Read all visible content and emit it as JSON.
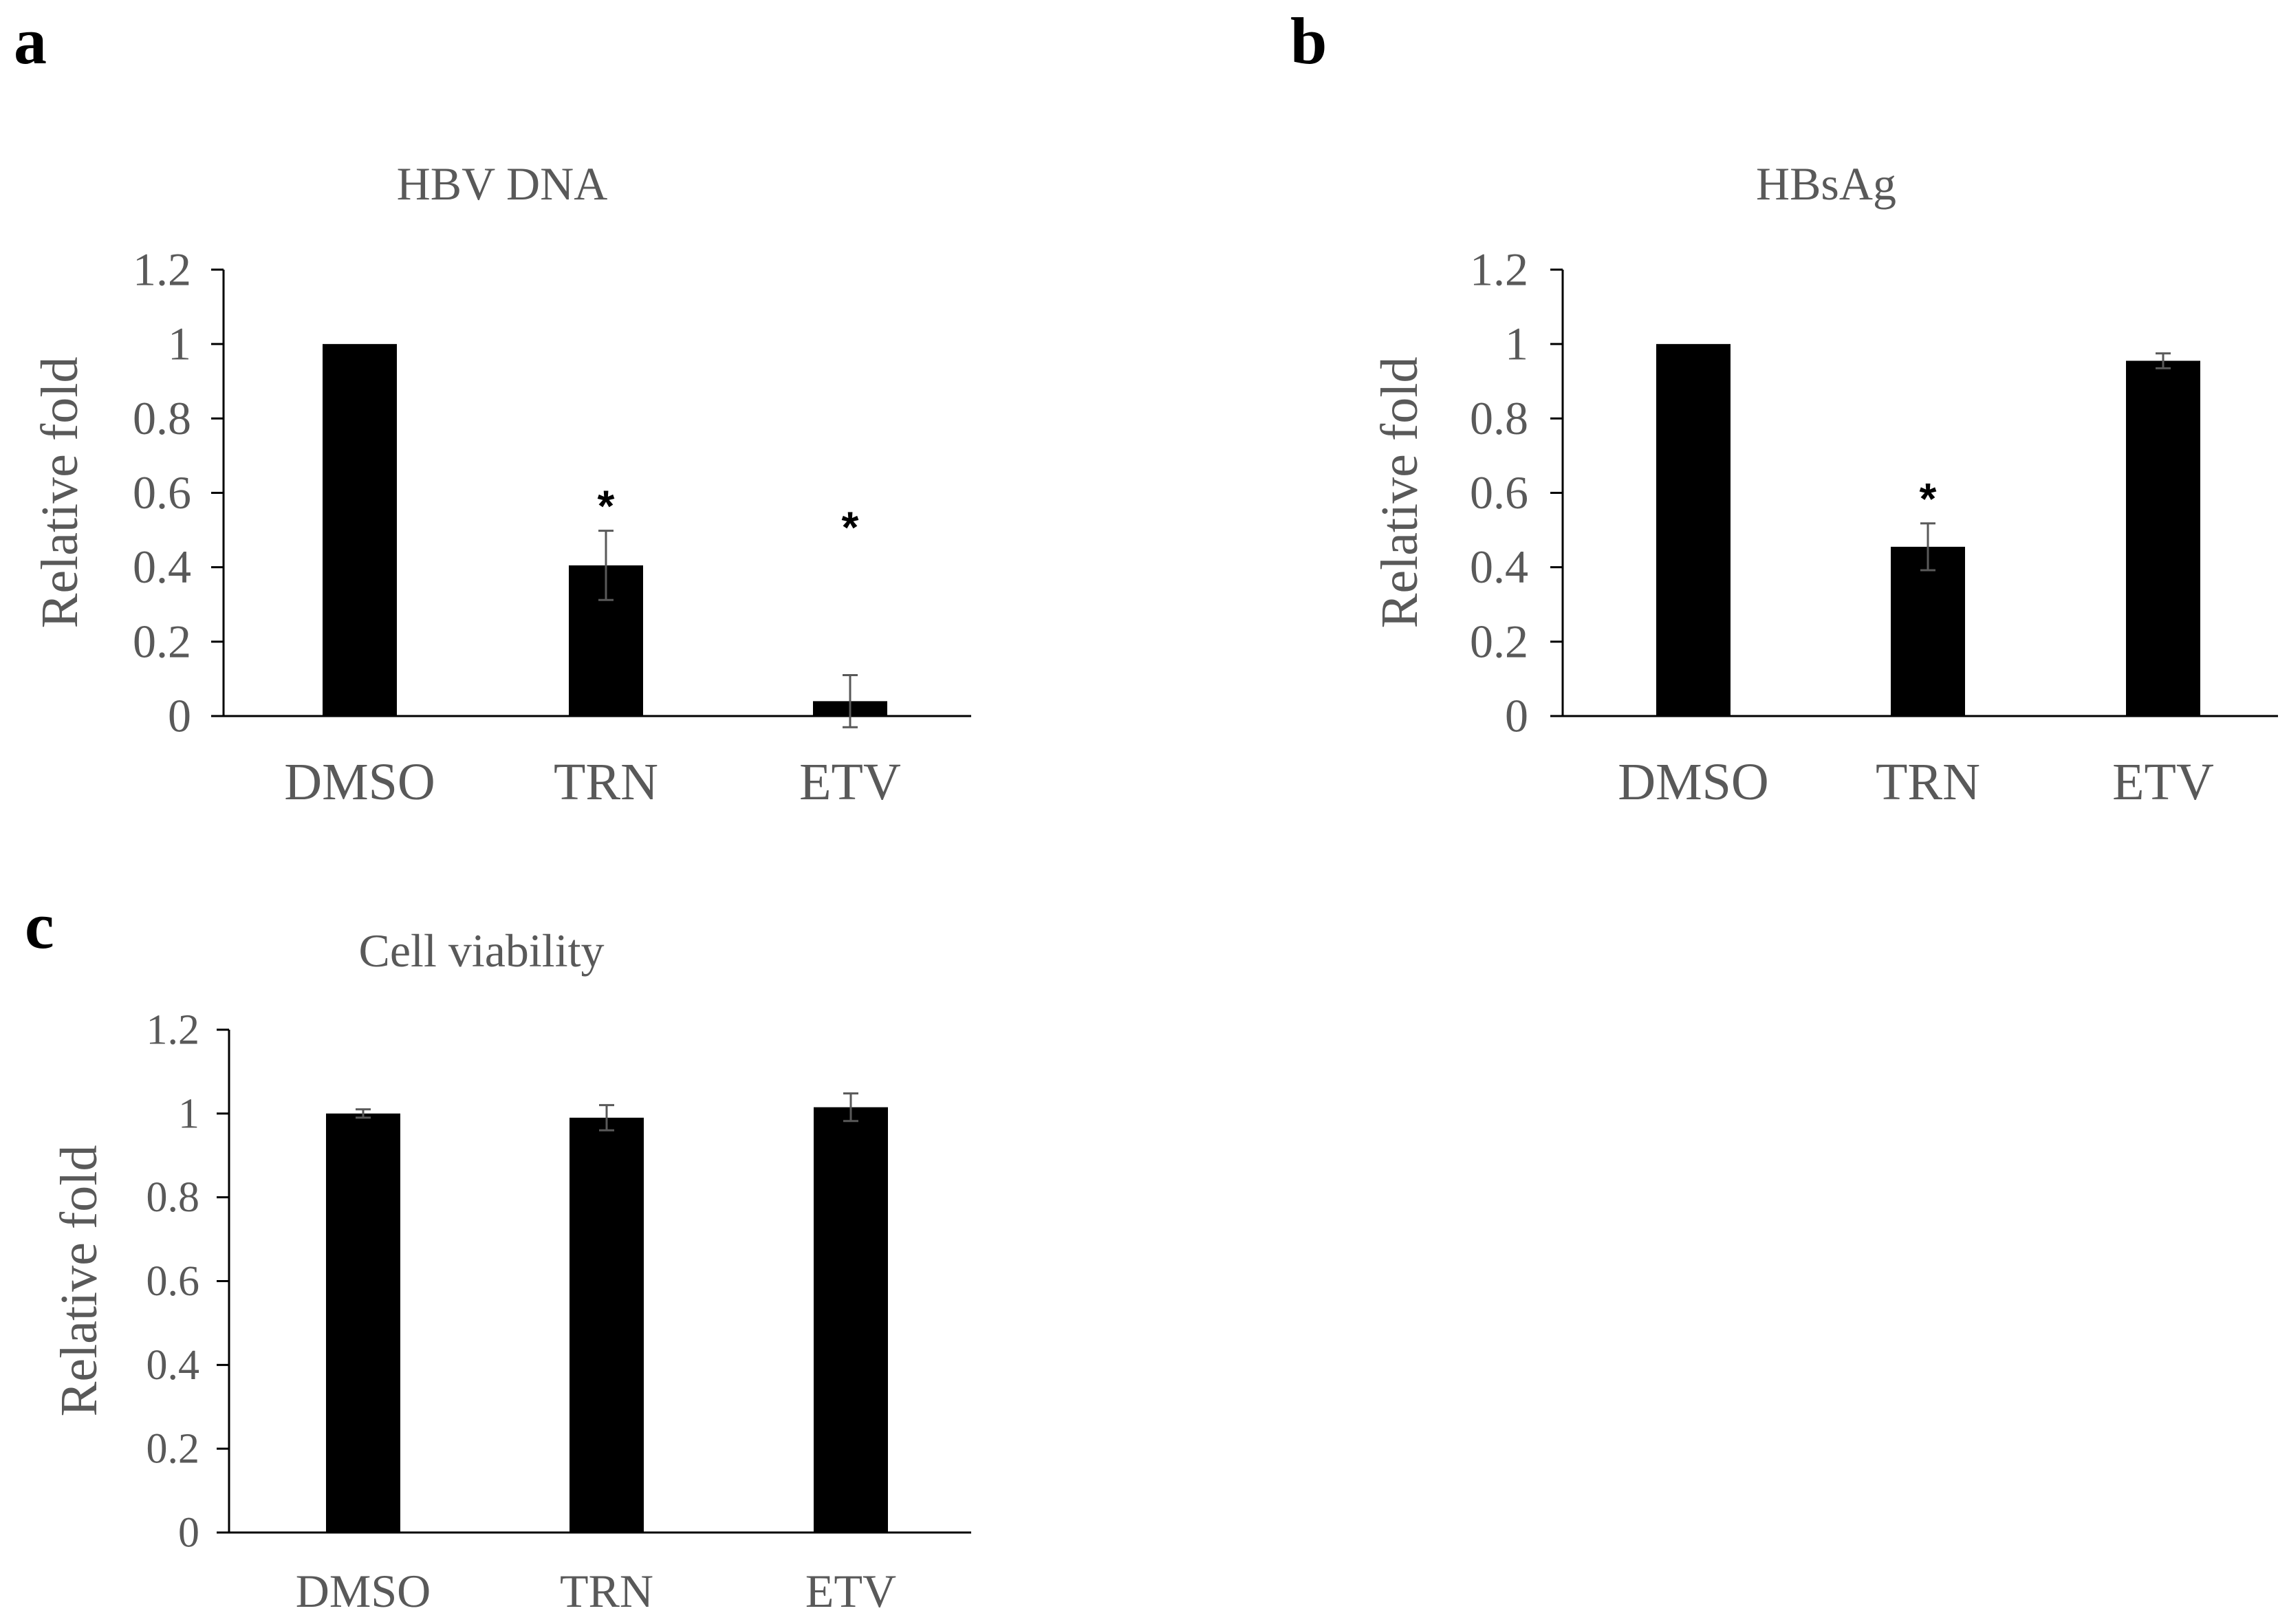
{
  "chart_data": [
    {
      "panel": "a",
      "type": "bar",
      "title": "HBV DNA",
      "ylabel": "Relative fold",
      "xlabel": "",
      "categories": [
        "DMSO",
        "TRN",
        "ETV"
      ],
      "values": [
        1.0,
        0.405,
        0.04
      ],
      "errors": [
        0,
        0.093,
        0.07
      ],
      "significance": [
        "",
        "*",
        "*"
      ],
      "ylim": [
        0,
        1.2
      ],
      "yticks": [
        "0",
        "0.2",
        "0.4",
        "0.6",
        "0.8",
        "1",
        "1.2"
      ],
      "bar_color": "#000000",
      "grid": false
    },
    {
      "panel": "b",
      "type": "bar",
      "title": "HBsAg",
      "ylabel": "Relative fold",
      "xlabel": "",
      "categories": [
        "DMSO",
        "TRN",
        "ETV"
      ],
      "values": [
        1.0,
        0.455,
        0.955
      ],
      "errors": [
        0,
        0.063,
        0.02
      ],
      "significance": [
        "",
        "*",
        ""
      ],
      "ylim": [
        0,
        1.2
      ],
      "yticks": [
        "0",
        "0.2",
        "0.4",
        "0.6",
        "0.8",
        "1",
        "1.2"
      ],
      "bar_color": "#000000",
      "grid": false
    },
    {
      "panel": "c",
      "type": "bar",
      "title": "Cell viability",
      "ylabel": "Relative fold",
      "xlabel": "",
      "categories": [
        "DMSO",
        "TRN",
        "ETV"
      ],
      "values": [
        1.0,
        0.99,
        1.015
      ],
      "errors": [
        0.01,
        0.03,
        0.033
      ],
      "significance": [
        "",
        "",
        ""
      ],
      "ylim": [
        0,
        1.2
      ],
      "yticks": [
        "0",
        "0.2",
        "0.4",
        "0.6",
        "0.8",
        "1",
        "1.2"
      ],
      "bar_color": "#000000",
      "grid": false
    }
  ]
}
